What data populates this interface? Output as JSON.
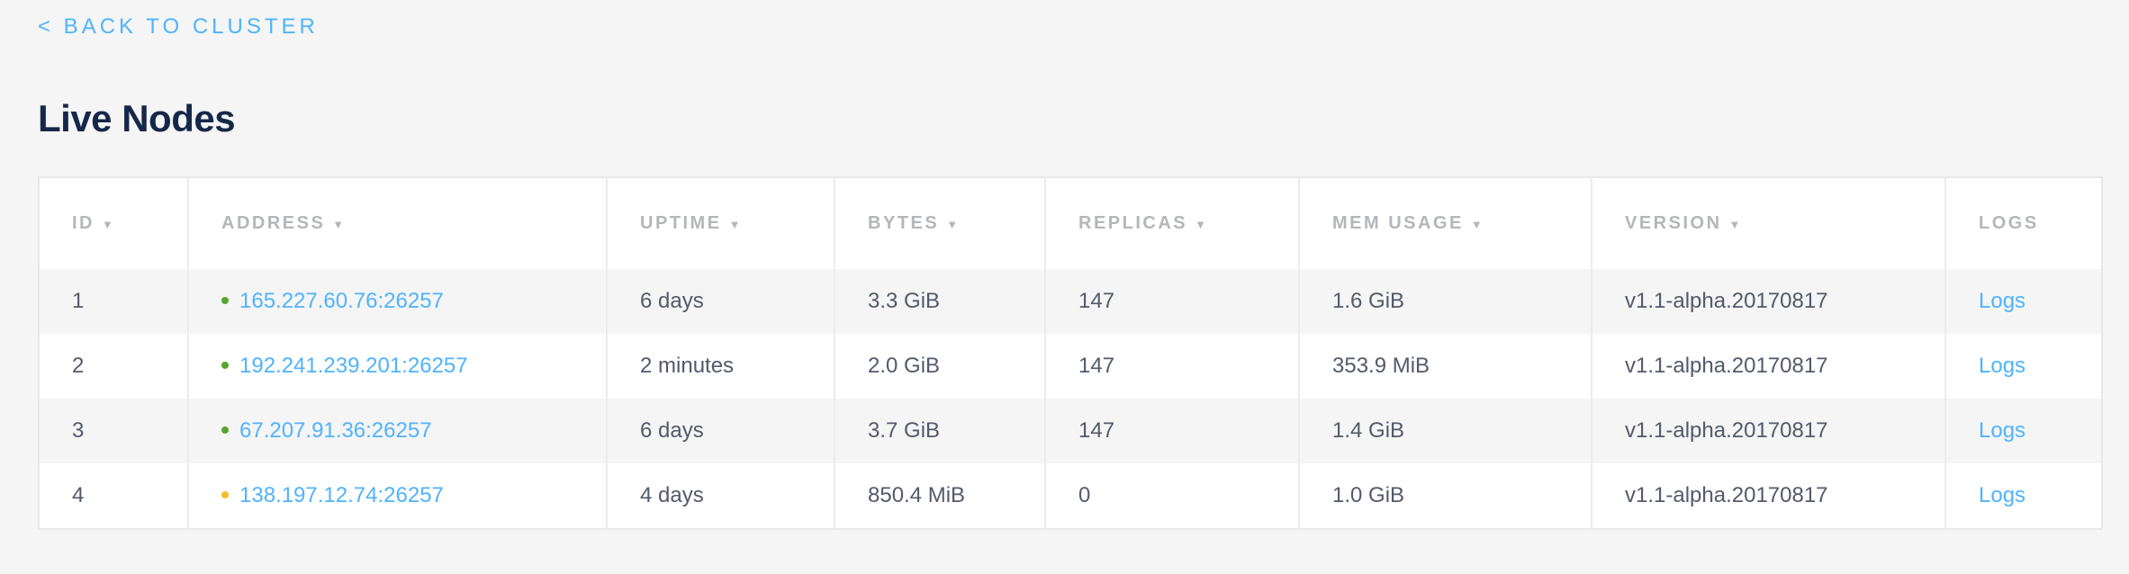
{
  "nav": {
    "back_label": "< BACK TO CLUSTER"
  },
  "page": {
    "title": "Live Nodes"
  },
  "colors": {
    "link": "#4fb3ff",
    "healthy": "#55a630",
    "warning": "#f2be2c"
  },
  "table": {
    "columns": [
      {
        "label": "ID",
        "sortable": true
      },
      {
        "label": "ADDRESS",
        "sortable": true
      },
      {
        "label": "UPTIME",
        "sortable": true
      },
      {
        "label": "BYTES",
        "sortable": true
      },
      {
        "label": "REPLICAS",
        "sortable": true
      },
      {
        "label": "MEM USAGE",
        "sortable": true
      },
      {
        "label": "VERSION",
        "sortable": true
      },
      {
        "label": "LOGS",
        "sortable": false
      }
    ],
    "sort_icon": "▼",
    "rows": [
      {
        "id": "1",
        "status": "healthy",
        "address": "165.227.60.76:26257",
        "uptime": "6 days",
        "bytes": "3.3 GiB",
        "replicas": "147",
        "mem": "1.6 GiB",
        "version": "v1.1-alpha.20170817",
        "logs": "Logs"
      },
      {
        "id": "2",
        "status": "healthy",
        "address": "192.241.239.201:26257",
        "uptime": "2 minutes",
        "bytes": "2.0 GiB",
        "replicas": "147",
        "mem": "353.9 MiB",
        "version": "v1.1-alpha.20170817",
        "logs": "Logs"
      },
      {
        "id": "3",
        "status": "healthy",
        "address": "67.207.91.36:26257",
        "uptime": "6 days",
        "bytes": "3.7 GiB",
        "replicas": "147",
        "mem": "1.4 GiB",
        "version": "v1.1-alpha.20170817",
        "logs": "Logs"
      },
      {
        "id": "4",
        "status": "warning",
        "address": "138.197.12.74:26257",
        "uptime": "4 days",
        "bytes": "850.4 MiB",
        "replicas": "0",
        "mem": "1.0 GiB",
        "version": "v1.1-alpha.20170817",
        "logs": "Logs"
      }
    ]
  }
}
